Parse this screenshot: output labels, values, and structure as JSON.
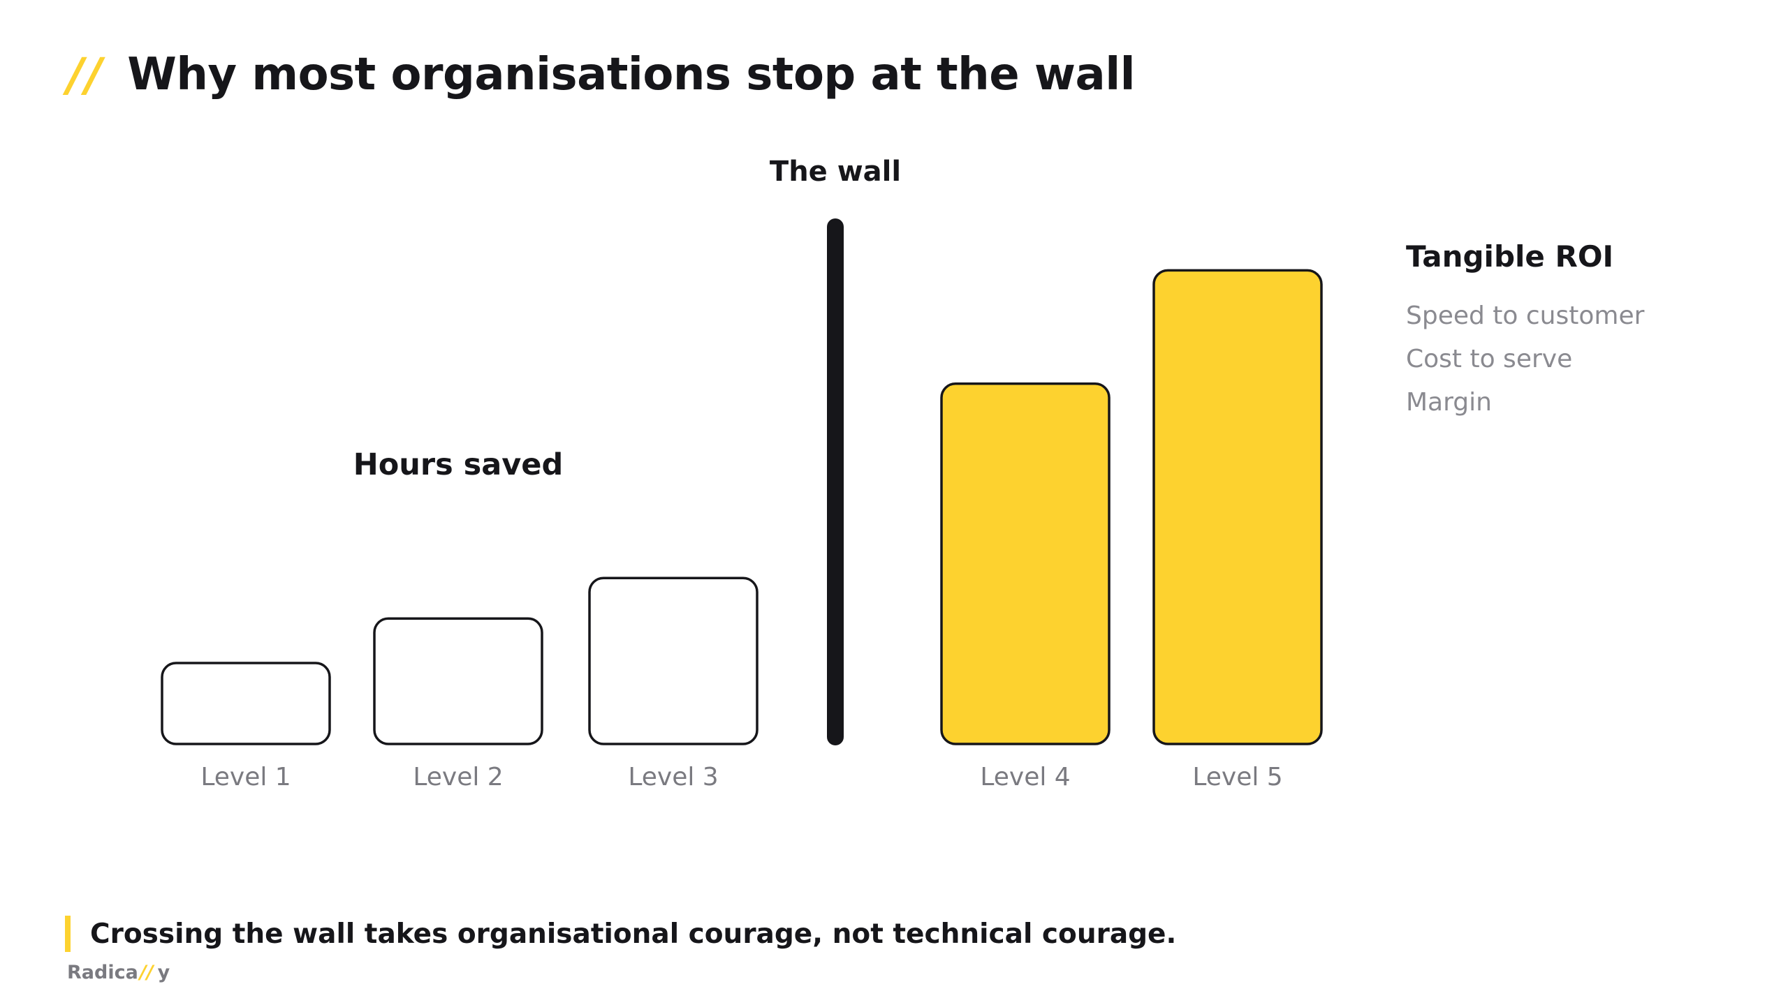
{
  "slide": {
    "title_mark": "//",
    "title": "Why most organisations stop at the wall"
  },
  "chart_data": {
    "type": "bar",
    "title": "",
    "categories": [
      "Level 1",
      "Level 2",
      "Level 3",
      "Level 4",
      "Level 5"
    ],
    "values": [
      1,
      1.55,
      2.05,
      4.45,
      5.85
    ],
    "value_unit": "relative",
    "bar_fill": [
      "#ffffff",
      "#ffffff",
      "#ffffff",
      "#fdd22f",
      "#fdd22f"
    ],
    "bar_stroke": "#16161a",
    "grid": false,
    "legend": "none",
    "divider": {
      "label": "The wall",
      "after_category": "Level 3",
      "color": "#16161a"
    },
    "group_labels": [
      {
        "text": "Hours saved",
        "categories": [
          "Level 1",
          "Level 2",
          "Level 3"
        ]
      },
      {
        "text": "Tangible ROI",
        "categories": [
          "Level 4",
          "Level 5"
        ]
      }
    ],
    "colors": {
      "accent": "#fdd22f",
      "ink": "#16161a",
      "muted": "#7a7a80"
    }
  },
  "roi_panel": {
    "heading": "Tangible ROI",
    "items": [
      "Speed to customer",
      "Cost to serve",
      "Margin"
    ]
  },
  "footer": {
    "quote": "Crossing the wall takes organisational courage, not technical courage.",
    "logo_pre": "Radica",
    "logo_mark": "//",
    "logo_post": "y"
  }
}
